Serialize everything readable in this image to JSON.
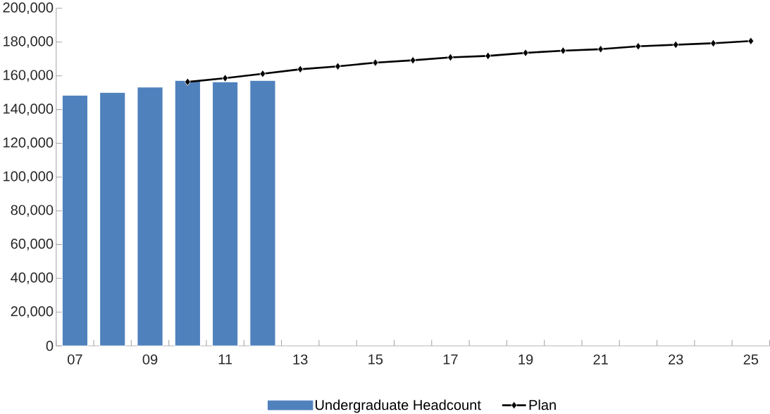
{
  "chart_data": {
    "type": "bar",
    "categories": [
      "07",
      null,
      "09",
      null,
      "11",
      null,
      "13",
      null,
      "15",
      null,
      "17",
      null,
      "19",
      null,
      "21",
      null,
      "23",
      null,
      "25"
    ],
    "series": [
      {
        "name": "Undergraduate Headcount",
        "color": "#4f81bd",
        "values": [
          148500,
          150200,
          153300,
          157300,
          156400,
          157300,
          null,
          null,
          null,
          null,
          null,
          null,
          null,
          null,
          null,
          null,
          null,
          null,
          null
        ]
      },
      {
        "name": "Plan",
        "type": "line",
        "color": "#000000",
        "marker": "diamond",
        "line_style": "solid",
        "values": [
          null,
          null,
          null,
          156400,
          158600,
          161200,
          163900,
          165600,
          167800,
          169200,
          170900,
          171800,
          173600,
          174900,
          175800,
          177500,
          178400,
          179300,
          180600
        ]
      }
    ],
    "ylim": [
      0,
      200000
    ],
    "yticks": [
      {
        "value": 0,
        "label": "0"
      },
      {
        "value": 20000,
        "label": "20,000"
      },
      {
        "value": 40000,
        "label": "40,000"
      },
      {
        "value": 60000,
        "label": "60,000"
      },
      {
        "value": 80000,
        "label": "80,000"
      },
      {
        "value": 100000,
        "label": "100,000"
      },
      {
        "value": 120000,
        "label": "120,000"
      },
      {
        "value": 140000,
        "label": "140,000"
      },
      {
        "value": 160000,
        "label": "160,000"
      },
      {
        "value": 180000,
        "label": "180,000"
      },
      {
        "value": 200000,
        "label": "200,000"
      }
    ],
    "grid": false,
    "legend": "bottom"
  }
}
